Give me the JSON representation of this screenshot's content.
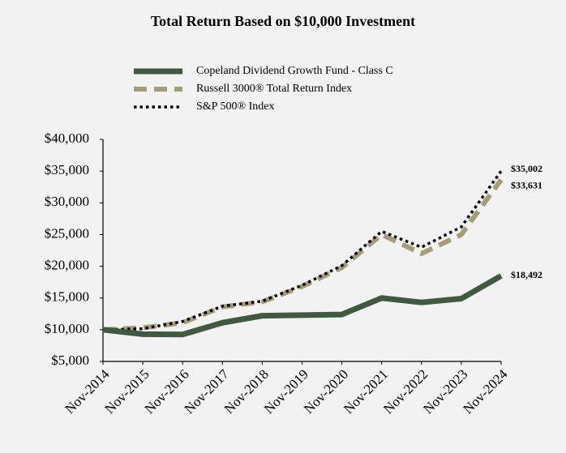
{
  "chart_data": {
    "type": "line",
    "title": "Total Return Based on $10,000 Investment",
    "categories": [
      "Nov-2014",
      "Nov-2015",
      "Nov-2016",
      "Nov-2017",
      "Nov-2018",
      "Nov-2019",
      "Nov-2020",
      "Nov-2021",
      "Nov-2022",
      "Nov-2023",
      "Nov-2024"
    ],
    "series": [
      {
        "name": "Copeland Dividend Growth Fund - Class C",
        "color": "#3f5a3e",
        "style": "solid",
        "values": [
          10000,
          9300,
          9250,
          11100,
          12200,
          12300,
          12400,
          15000,
          14300,
          14900,
          18492
        ],
        "value_labels": [
          null,
          null,
          null,
          null,
          null,
          null,
          null,
          null,
          null,
          null,
          "$18,492"
        ]
      },
      {
        "name": "Russell 3000® Total Return Index",
        "color": "#a59d74",
        "style": "dashed",
        "values": [
          10000,
          10300,
          11100,
          13600,
          14400,
          16800,
          19800,
          25000,
          22000,
          25000,
          33631
        ],
        "value_labels": [
          null,
          null,
          null,
          null,
          null,
          null,
          null,
          null,
          null,
          null,
          "$33,631"
        ]
      },
      {
        "name": "S&P 500® Index",
        "color": "#000000",
        "style": "dotted",
        "values": [
          10000,
          10150,
          11300,
          13700,
          14500,
          17000,
          20100,
          25500,
          23000,
          26200,
          35002
        ],
        "value_labels": [
          null,
          null,
          null,
          null,
          null,
          null,
          null,
          null,
          null,
          null,
          "$35,002"
        ]
      }
    ],
    "ylim": [
      5000,
      40000
    ],
    "yticks": [
      {
        "value": 5000,
        "label": "$5,000"
      },
      {
        "value": 10000,
        "label": "$10,000"
      },
      {
        "value": 15000,
        "label": "$15,000"
      },
      {
        "value": 20000,
        "label": "$20,000"
      },
      {
        "value": 25000,
        "label": "$25,000"
      },
      {
        "value": 30000,
        "label": "$30,000"
      },
      {
        "value": 35000,
        "label": "$35,000"
      },
      {
        "value": 40000,
        "label": "$40,000"
      }
    ],
    "grid": false
  }
}
